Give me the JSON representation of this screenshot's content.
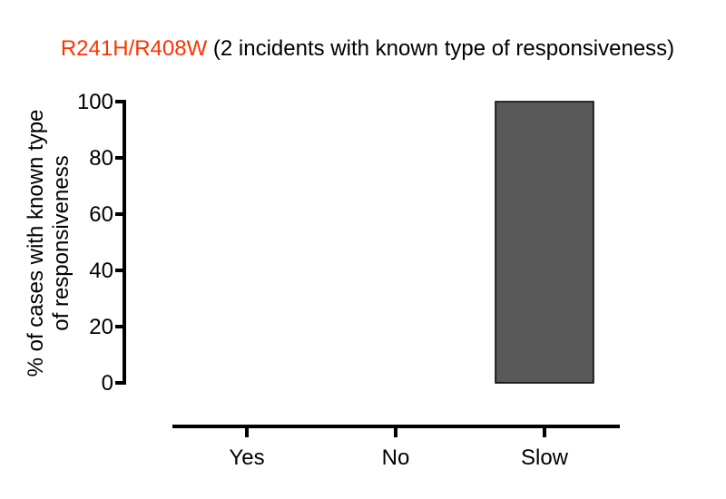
{
  "chart_data": {
    "type": "bar",
    "title_highlight": "R241H/R408W",
    "title_rest": " (2 incidents with known type of responsiveness)",
    "ylabel_line1": "% of cases with  known type",
    "ylabel_line2": "of responsiveness",
    "categories": [
      "Yes",
      "No",
      "Slow"
    ],
    "values": [
      0,
      0,
      100
    ],
    "ylim": [
      0,
      100
    ],
    "yticks": [
      0,
      20,
      40,
      60,
      80,
      100
    ],
    "grid": false,
    "colors": {
      "title_highlight": "#ff3300",
      "bar_fill": "#595959",
      "axis": "#000000"
    }
  }
}
